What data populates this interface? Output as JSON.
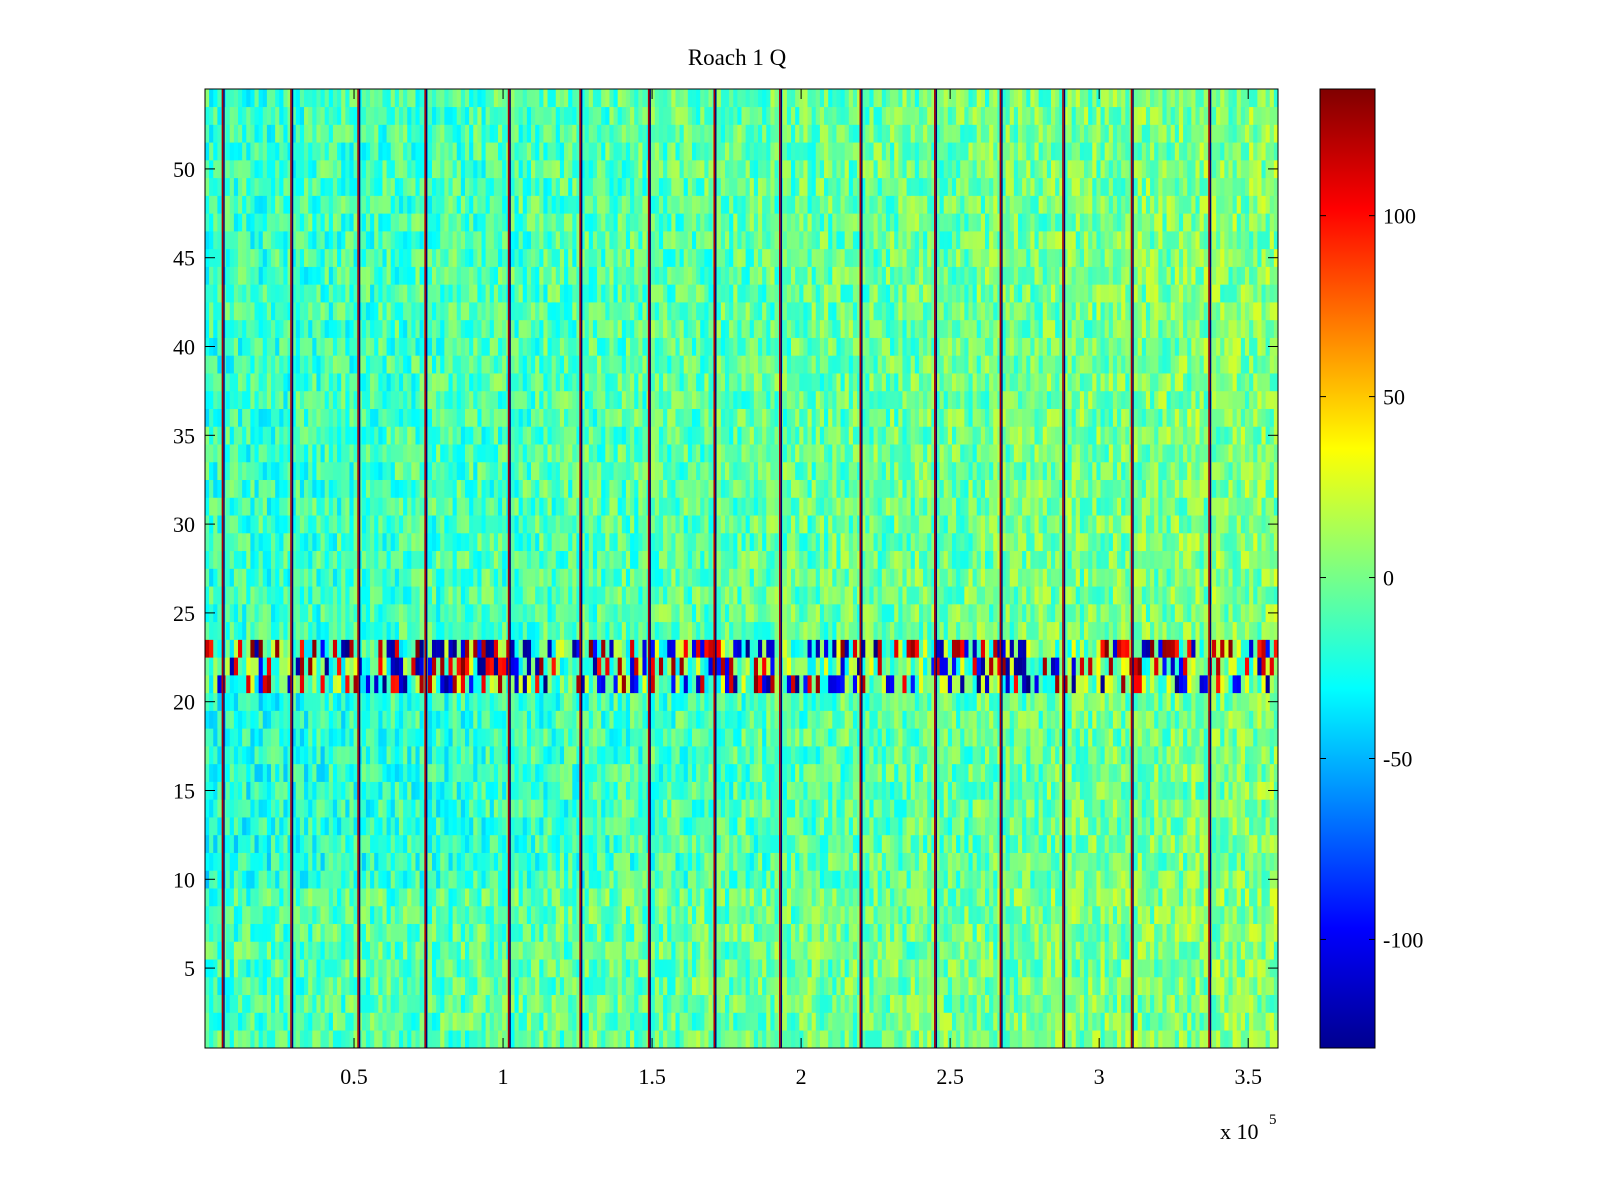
{
  "chart_data": {
    "type": "heatmap",
    "title": "Roach 1 Q",
    "xlabel": "",
    "ylabel": "",
    "x_range": [
      0,
      360000
    ],
    "y_range": [
      0.5,
      54.5
    ],
    "x_ticks": [
      50000,
      100000,
      150000,
      200000,
      250000,
      300000,
      350000
    ],
    "x_tick_labels": [
      "0.5",
      "1",
      "1.5",
      "2",
      "2.5",
      "3",
      "3.5"
    ],
    "x_exponent_label": "x 10",
    "x_exponent_power": "5",
    "y_ticks": [
      5,
      10,
      15,
      20,
      25,
      30,
      35,
      40,
      45,
      50
    ],
    "y_tick_labels": [
      "5",
      "10",
      "15",
      "20",
      "25",
      "30",
      "35",
      "40",
      "45",
      "50"
    ],
    "rows": 54,
    "colormap": "jet",
    "color_range": [
      -130,
      135
    ],
    "colorbar_ticks": [
      -100,
      -50,
      0,
      50,
      100
    ],
    "colorbar_tick_labels": [
      "-100",
      "-50",
      "0",
      "50",
      "100"
    ],
    "background_level_by_row_band": [
      {
        "rows": [
          1,
          9
        ],
        "level": 0
      },
      {
        "rows": [
          10,
          20
        ],
        "level": -12
      },
      {
        "rows": [
          21,
          23
        ],
        "level": 0,
        "note_values": "strong alternating extremes -130 to 135"
      },
      {
        "rows": [
          24,
          54
        ],
        "level": -5
      }
    ],
    "column_trend": {
      "x_start": 0,
      "x_end": 360000,
      "level_start": -20,
      "level_end": 8
    },
    "vertical_line_x": [
      6000,
      29000,
      51500,
      74000,
      102000,
      126000,
      149000,
      171000,
      193000,
      220000,
      245000,
      267000,
      288000,
      311000,
      337000
    ],
    "grid": false,
    "legend": "colorbar-right"
  }
}
